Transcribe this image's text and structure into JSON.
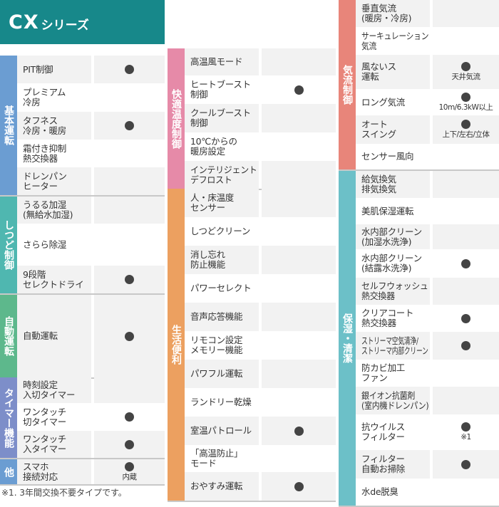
{
  "header": {
    "series_big": "CX",
    "series_small": "シリーズ"
  },
  "footnote": "※1. 3年間交換不要タイプです。",
  "colors": {
    "header": "#17888a",
    "basic": "#6b9dd2",
    "humidity": "#4fb7b0",
    "auto": "#5db88c",
    "timer": "#7d8ec9",
    "other": "#6b9dd2",
    "comfort": "#e68aa8",
    "life": "#eca060",
    "airflow": "#e8857a",
    "clean": "#6cc0c8",
    "dot": "#444444"
  },
  "groups": [
    {
      "id": "basic",
      "label": "基本運転",
      "rows": [
        {
          "label": "PIT制御",
          "dot": true
        },
        {
          "label": "プレミアム\n冷房",
          "dot": false
        },
        {
          "label": "タフネス\n冷房・暖房",
          "dot": true
        },
        {
          "label": "霜付き抑制\n熱交換器",
          "dot": false
        },
        {
          "label": "ドレンパン\nヒーター",
          "dot": false
        }
      ]
    },
    {
      "id": "humidity",
      "label": "しつど制御",
      "rows": [
        {
          "label": "うるる加湿\n(無給水加湿)",
          "dot": false
        },
        {
          "label": "さらら除湿",
          "dot": false
        },
        {
          "label": "9段階\nセレクトドライ",
          "dot": true
        }
      ]
    },
    {
      "id": "auto",
      "label": "自動運転",
      "rows": [
        {
          "label": "自動運転",
          "dot": true
        }
      ]
    },
    {
      "id": "timer",
      "label": "タイマー機能",
      "rows": [
        {
          "label": "時刻設定\n入切タイマー",
          "dot": false
        },
        {
          "label": "ワンタッチ\n切タイマー",
          "dot": true
        },
        {
          "label": "ワンタッチ\n入タイマー",
          "dot": true
        }
      ]
    },
    {
      "id": "other",
      "label": "他",
      "rows": [
        {
          "label": "スマホ\n接続対応",
          "dot": true,
          "note": "内蔵"
        }
      ]
    },
    {
      "id": "comfort",
      "label": "快適温度制御",
      "rows": [
        {
          "label": "高温風モード",
          "dot": false
        },
        {
          "label": "ヒートブースト\n制御",
          "dot": true
        },
        {
          "label": "クールブースト\n制御",
          "dot": false
        },
        {
          "label": "10℃からの\n暖房設定",
          "dot": false
        },
        {
          "label": "インテリジェント\nデフロスト",
          "dot": false
        }
      ]
    },
    {
      "id": "life",
      "label": "生活便利",
      "rows": [
        {
          "label": "人・床温度\nセンサー",
          "dot": false
        },
        {
          "label": "しつどクリーン",
          "dot": false
        },
        {
          "label": "消し忘れ\n防止機能",
          "dot": false
        },
        {
          "label": "パワーセレクト",
          "dot": false
        },
        {
          "label": "音声応答機能",
          "dot": false
        },
        {
          "label": "リモコン設定\nメモリー機能",
          "dot": false
        },
        {
          "label": "パワフル運転",
          "dot": false
        },
        {
          "label": "ランドリー乾燥",
          "dot": false
        },
        {
          "label": "室温パトロール",
          "dot": true
        },
        {
          "label": "「高温防止」\nモード",
          "dot": false
        },
        {
          "label": "おやすみ運転",
          "dot": true
        }
      ]
    },
    {
      "id": "airflow",
      "label": "気流制御",
      "rows": [
        {
          "label": "垂直気流\n(暖房・冷房)",
          "dot": false
        },
        {
          "label": "サーキュレーション\n気流",
          "dot": false
        },
        {
          "label": "風ないス\n運転",
          "dot": true,
          "note": "天井気流"
        },
        {
          "label": "ロング気流",
          "dot": true,
          "note": "10m/6.3kW以上"
        },
        {
          "label": "オート\nスイング",
          "dot": true,
          "note": "上下/左右/立体"
        },
        {
          "label": "センサー風向",
          "dot": false
        }
      ]
    },
    {
      "id": "clean",
      "label": "保湿・清潔",
      "rows": [
        {
          "label": "給気換気\n排気換気",
          "dot": false
        },
        {
          "label": "美肌保湿運転",
          "dot": false
        },
        {
          "label": "水内部クリーン\n(加湿水洗浄)",
          "dot": false
        },
        {
          "label": "水内部クリーン\n(結露水洗浄)",
          "dot": true
        },
        {
          "label": "セルフウォッシュ\n熱交換器",
          "dot": false
        },
        {
          "label": "クリアコート\n熱交換器",
          "dot": true
        },
        {
          "label": "ストリーマ空気清浄/\nストリーマ内部クリーン",
          "dot": true
        },
        {
          "label": "防カビ加工\nファン",
          "dot": false
        },
        {
          "label": "銀イオン抗菌剤\n(室内機ドレンパン)",
          "dot": false
        },
        {
          "label": "抗ウイルス\nフィルター",
          "dot": true,
          "note": "※1"
        },
        {
          "label": "フィルター\n自動お掃除",
          "dot": true
        },
        {
          "label": "水de脱臭",
          "dot": false
        }
      ]
    }
  ]
}
